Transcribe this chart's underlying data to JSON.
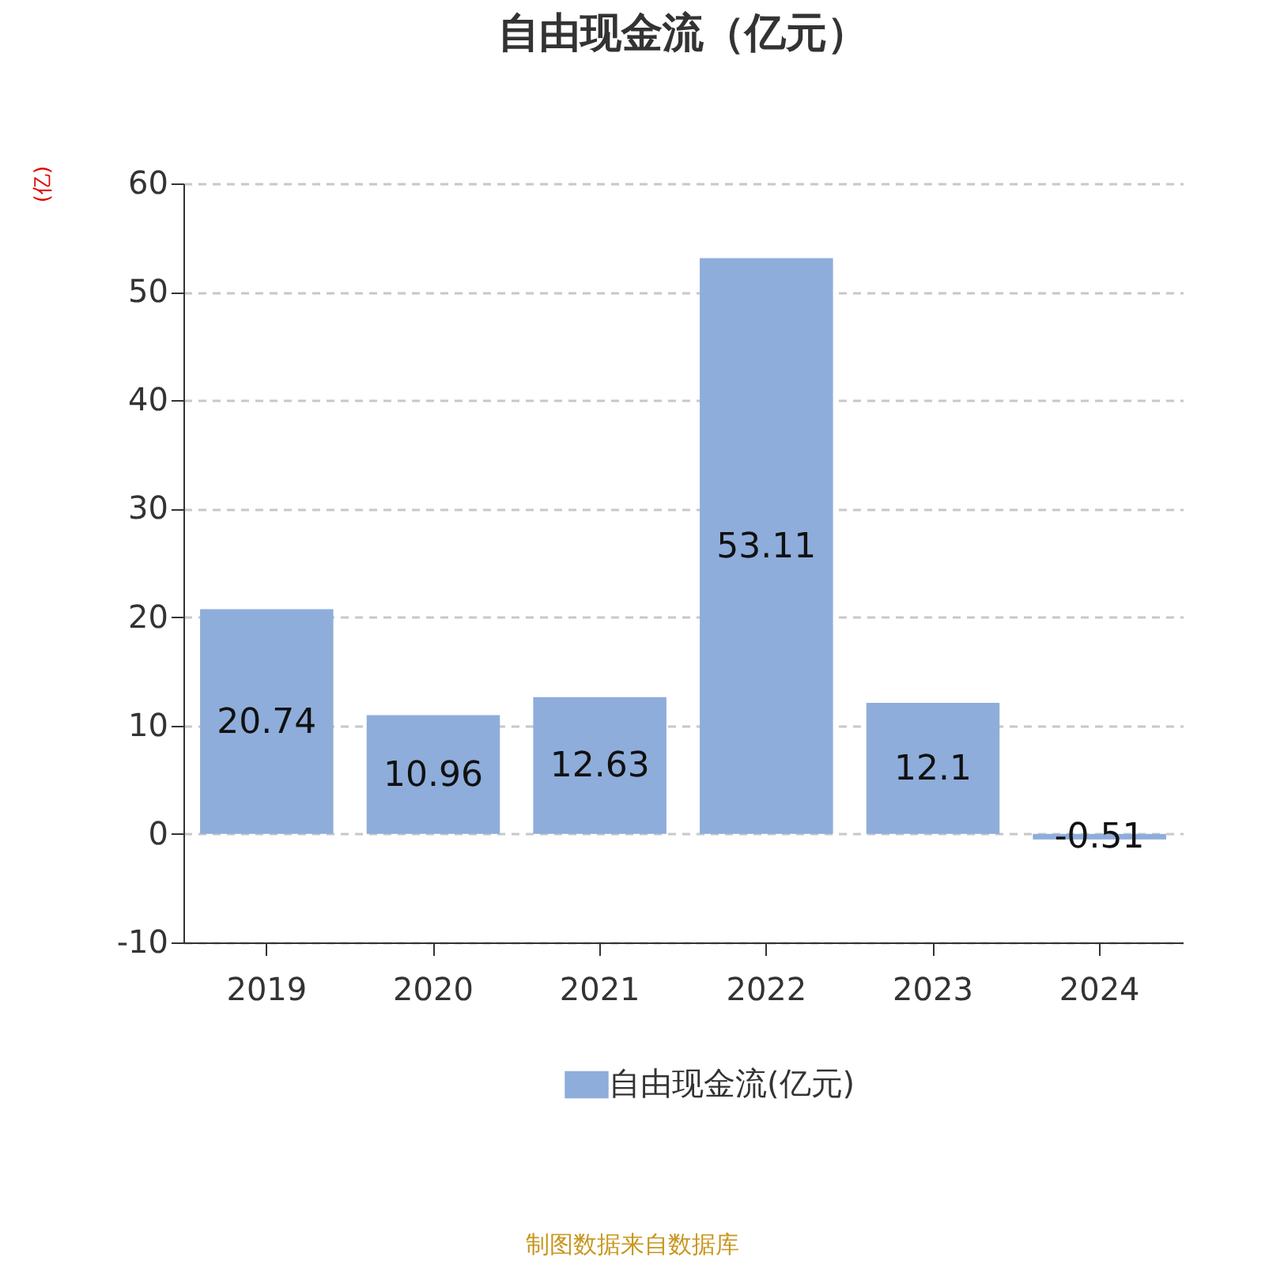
{
  "chart_data": {
    "type": "bar",
    "title": "自由现金流（亿元）",
    "ylabel": "(亿)",
    "categories": [
      "2019",
      "2020",
      "2021",
      "2022",
      "2023",
      "2024"
    ],
    "series": [
      {
        "name": "自由现金流(亿元)",
        "color": "#8eaddb",
        "values": [
          20.74,
          10.96,
          12.63,
          53.11,
          12.1,
          -0.51
        ]
      }
    ],
    "ylim": [
      -10,
      60
    ],
    "yticks": [
      -10,
      0,
      10,
      20,
      30,
      40,
      50,
      60
    ],
    "grid": "y",
    "legend": "bottom",
    "data_labels": true,
    "annotations": [
      "制图数据来自数据库"
    ]
  }
}
